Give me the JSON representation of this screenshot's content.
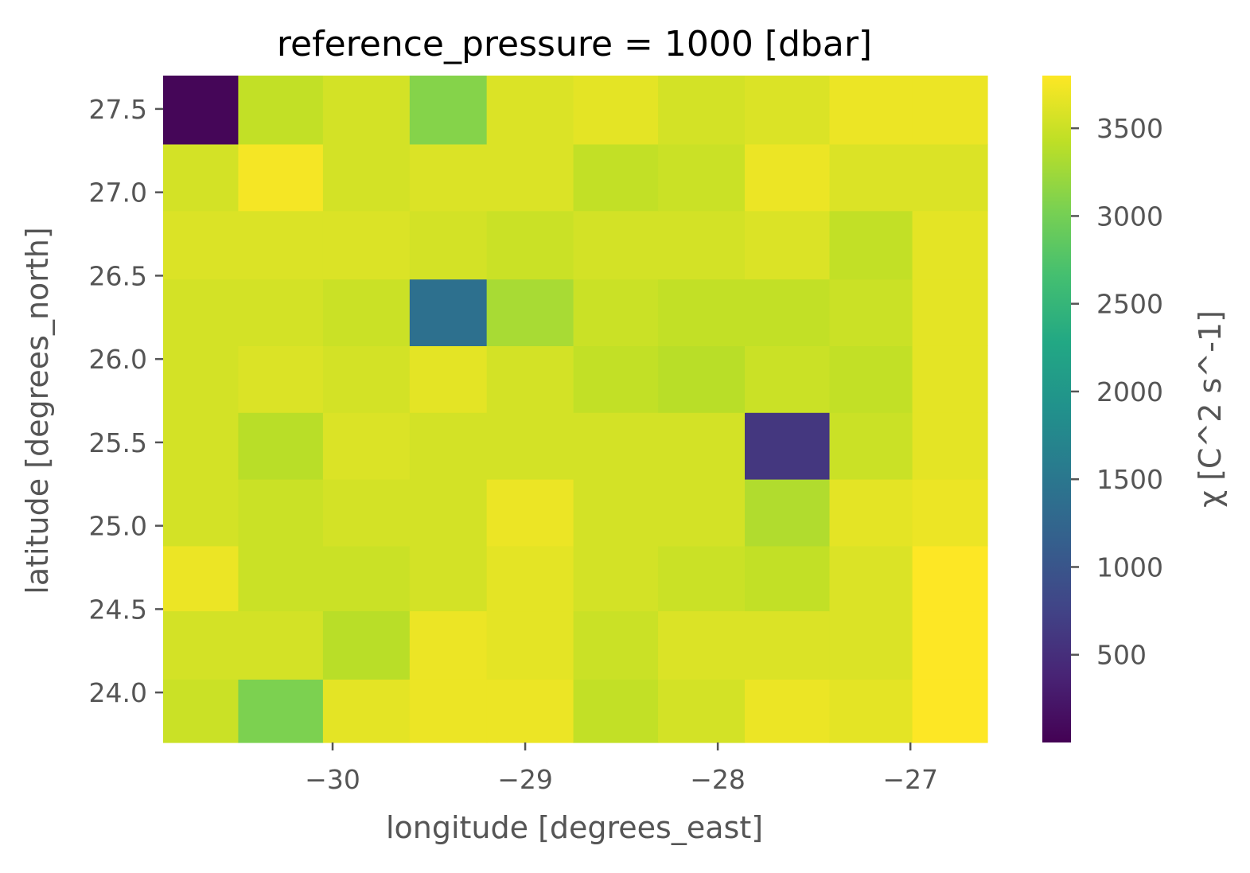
{
  "chart_data": {
    "type": "heatmap",
    "title": "reference_pressure = 1000 [dbar]",
    "xlabel": "longitude [degrees_east]",
    "ylabel": "latitude [degrees_north]",
    "colorbar_label": "χ [C^2 s^-1]",
    "x_ticks": [
      -30,
      -29,
      -28,
      -27
    ],
    "x_tick_labels": [
      "−30",
      "−29",
      "−28",
      "−27"
    ],
    "y_ticks": [
      24.0,
      24.5,
      25.0,
      25.5,
      26.0,
      26.5,
      27.0,
      27.5
    ],
    "y_tick_labels": [
      "24.0",
      "24.5",
      "25.0",
      "25.5",
      "26.0",
      "26.5",
      "27.0",
      "27.5"
    ],
    "colorbar_ticks": [
      500,
      1000,
      1500,
      2000,
      2500,
      3000,
      3500
    ],
    "colorbar_tick_labels": [
      "500",
      "1000",
      "1500",
      "2000",
      "2500",
      "3000",
      "3500"
    ],
    "xlim": [
      -30.88,
      -26.6
    ],
    "ylim": [
      23.7,
      27.7
    ],
    "vmin": 0,
    "vmax": 3800,
    "colormap": "viridis",
    "x_edges": [
      -30.88,
      -30.49,
      -30.05,
      -29.6,
      -29.2,
      -28.75,
      -28.31,
      -27.86,
      -27.42,
      -26.99,
      -26.6
    ],
    "y_edges": [
      23.7,
      24.08,
      24.49,
      24.88,
      25.28,
      25.68,
      26.08,
      26.48,
      26.89,
      27.29,
      27.7
    ],
    "values": [
      [
        3500,
        3050,
        3650,
        3700,
        3700,
        3450,
        3550,
        3700,
        3650,
        3800
      ],
      [
        3550,
        3550,
        3400,
        3700,
        3650,
        3500,
        3600,
        3600,
        3600,
        3800
      ],
      [
        3700,
        3500,
        3500,
        3550,
        3650,
        3550,
        3500,
        3450,
        3600,
        3800
      ],
      [
        3550,
        3500,
        3550,
        3550,
        3700,
        3550,
        3550,
        3350,
        3650,
        3700
      ],
      [
        3550,
        3400,
        3600,
        3550,
        3550,
        3550,
        3550,
        600,
        3500,
        3650
      ],
      [
        3550,
        3600,
        3550,
        3650,
        3550,
        3450,
        3400,
        3500,
        3450,
        3650
      ],
      [
        3550,
        3550,
        3500,
        1400,
        3300,
        3500,
        3450,
        3450,
        3500,
        3650
      ],
      [
        3600,
        3600,
        3600,
        3550,
        3500,
        3550,
        3550,
        3600,
        3450,
        3650
      ],
      [
        3550,
        3750,
        3550,
        3600,
        3600,
        3450,
        3500,
        3700,
        3600,
        3600
      ],
      [
        50,
        3450,
        3550,
        3100,
        3600,
        3650,
        3550,
        3600,
        3700,
        3700
      ]
    ]
  }
}
